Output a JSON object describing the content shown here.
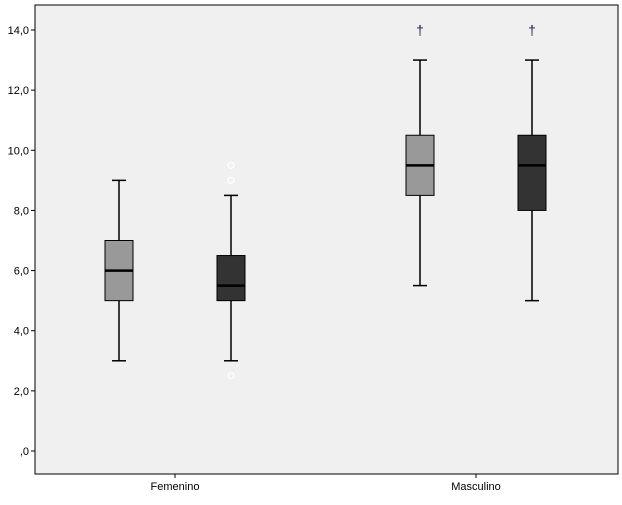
{
  "chart_data": {
    "type": "boxplot",
    "title": "",
    "xlabel": "",
    "ylabel": "",
    "ylim": [
      0,
      14.5
    ],
    "y_ticks": [
      0,
      2,
      4,
      6,
      8,
      10,
      12,
      14
    ],
    "y_tick_labels": [
      ",0",
      "2,0",
      "4,0",
      "6,0",
      "8,0",
      "10,0",
      "12,0",
      "14,0"
    ],
    "categories": [
      "Femenino",
      "Masculino"
    ],
    "grid": false,
    "legend": "none",
    "colors": {
      "background": "#f0f0f0",
      "series_light": "#999999",
      "series_dark": "#333333"
    },
    "series": [
      {
        "color": "#999999",
        "boxes": [
          {
            "category": "Femenino",
            "min": 3.0,
            "q1": 5.0,
            "median": 6.0,
            "q3": 7.0,
            "max": 9.0,
            "outliers": [],
            "extremes": []
          },
          {
            "category": "Masculino",
            "min": 5.5,
            "q1": 8.5,
            "median": 9.5,
            "q3": 10.5,
            "max": 13.0,
            "outliers": [],
            "extremes": [
              14.0
            ]
          }
        ]
      },
      {
        "color": "#333333",
        "boxes": [
          {
            "category": "Femenino",
            "min": 3.0,
            "q1": 5.0,
            "median": 5.5,
            "q3": 6.5,
            "max": 8.5,
            "outliers": [
              2.5,
              9.0,
              9.5
            ],
            "extremes": []
          },
          {
            "category": "Masculino",
            "min": 5.0,
            "q1": 8.0,
            "median": 9.5,
            "q3": 10.5,
            "max": 13.0,
            "outliers": [],
            "extremes": [
              14.0
            ]
          }
        ]
      }
    ],
    "extreme_marker": "†"
  }
}
